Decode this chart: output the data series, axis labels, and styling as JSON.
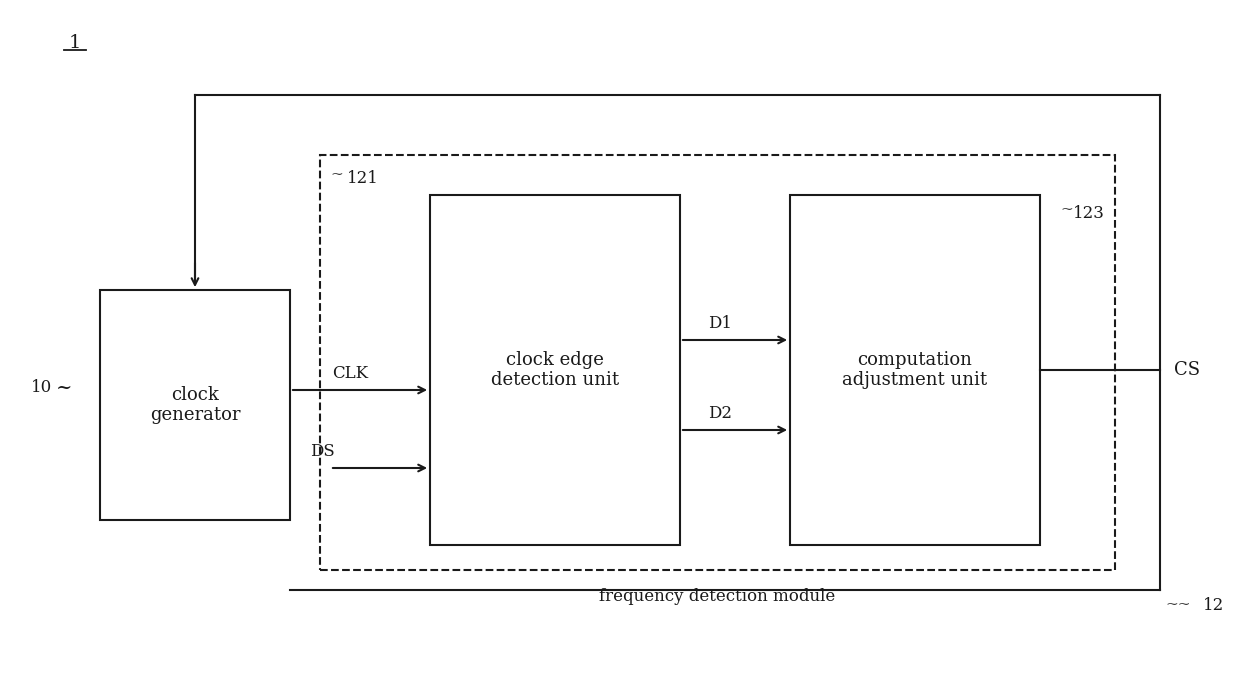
{
  "bg_color": "#ffffff",
  "line_color": "#1a1a1a",
  "label_1": "1",
  "label_10": "10",
  "label_12": "12",
  "label_121": "121",
  "label_123": "123",
  "label_clk_gen": "clock\ngenerator",
  "label_clk_edge": "clock edge\ndetection unit",
  "label_comp_adj": "computation\nadjustment unit",
  "label_freq_det": "frequency detection module",
  "label_CLK": "CLK",
  "label_DS": "DS",
  "label_D1": "D1",
  "label_D2": "D2",
  "label_CS": "CS",
  "figsize": [
    12.4,
    6.9
  ],
  "dpi": 100
}
